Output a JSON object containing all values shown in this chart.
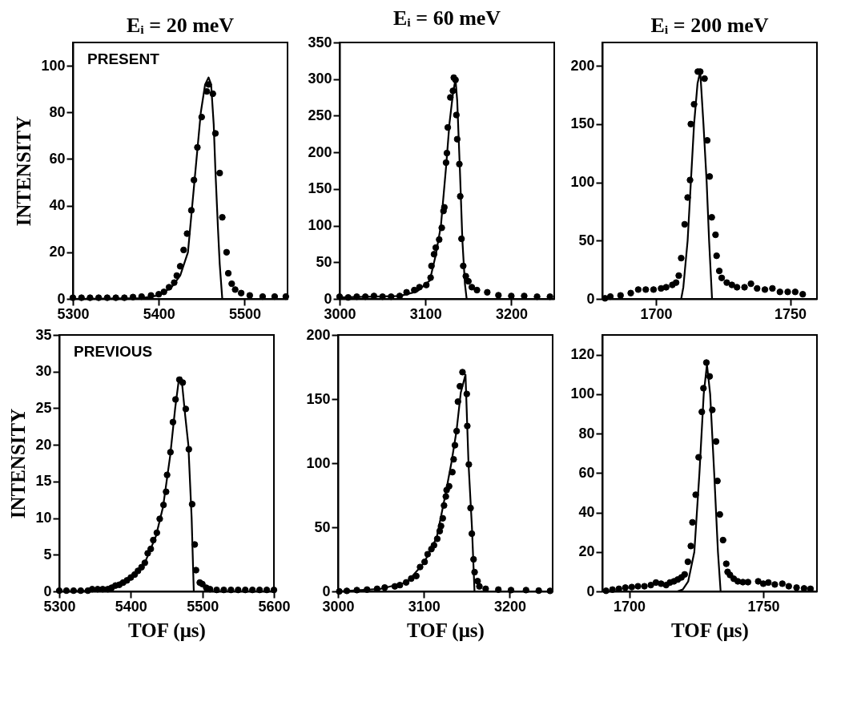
{
  "chart_data": [
    {
      "type": "scatter",
      "title": "Eᵢ = 20 meV",
      "ylabel": "INTENSITY",
      "annotations": [
        "PRESENT"
      ],
      "xlim": [
        5300,
        5550
      ],
      "ylim": [
        0,
        110
      ],
      "xticks": [
        5300,
        5400,
        5500
      ],
      "yticks": [
        0,
        20,
        40,
        60,
        80,
        100
      ],
      "series": [
        {
          "type": "scatter",
          "marker": "circle",
          "color": "#000000",
          "x": [
            5300,
            5310,
            5320,
            5330,
            5340,
            5350,
            5360,
            5370,
            5380,
            5391,
            5400,
            5406,
            5412,
            5418,
            5421,
            5425,
            5429,
            5433,
            5438,
            5441,
            5445,
            5450,
            5456,
            5458,
            5463,
            5466,
            5471,
            5474,
            5479,
            5481,
            5485,
            5489,
            5496,
            5506,
            5521,
            5535,
            5548
          ],
          "values": [
            0.5,
            0.5,
            0.5,
            0.5,
            0.5,
            0.5,
            0.5,
            0.8,
            1,
            1.5,
            2,
            3,
            5,
            7,
            10,
            14,
            21,
            28,
            38,
            51,
            65,
            78,
            89,
            92,
            88,
            71,
            54,
            35,
            20,
            11,
            6.5,
            4,
            2.5,
            1.5,
            1,
            1,
            1
          ]
        },
        {
          "type": "line",
          "marker": "none",
          "color": "#000000",
          "x": [
            5300,
            5380,
            5400,
            5415,
            5425,
            5434,
            5439,
            5444,
            5449,
            5454,
            5458,
            5461,
            5464,
            5466,
            5469,
            5471,
            5474
          ],
          "values": [
            0,
            0.3,
            1.5,
            5,
            10,
            20,
            40,
            60,
            80,
            92,
            95,
            92,
            75,
            55,
            30,
            15,
            0
          ]
        }
      ]
    },
    {
      "type": "scatter",
      "title": "Eᵢ = 60 meV",
      "xlim": [
        3000,
        3250
      ],
      "ylim": [
        0,
        350
      ],
      "xticks": [
        3000,
        3100,
        3200
      ],
      "yticks": [
        0,
        50,
        100,
        150,
        200,
        250,
        300,
        350
      ],
      "series": [
        {
          "type": "scatter",
          "marker": "circle",
          "color": "#000000",
          "x": [
            3000,
            3010,
            3020,
            3030,
            3040,
            3050,
            3060,
            3070,
            3078,
            3087,
            3093,
            3101,
            3106,
            3107,
            3110,
            3112,
            3116,
            3119,
            3121,
            3122,
            3124,
            3125,
            3126,
            3129,
            3132,
            3133,
            3135,
            3136,
            3137,
            3139.5,
            3140.5,
            3142,
            3144,
            3147,
            3150,
            3154,
            3160,
            3172,
            3185,
            3200,
            3215,
            3230,
            3245
          ],
          "values": [
            3,
            2,
            3,
            3,
            4,
            3,
            3,
            4,
            9,
            12,
            16,
            19,
            29,
            45,
            61,
            70,
            81,
            97,
            120,
            125,
            186,
            199,
            234,
            275,
            284,
            302,
            299,
            251,
            218,
            184,
            140,
            82,
            45,
            31,
            24,
            16,
            12,
            9,
            5,
            4,
            4,
            3,
            3
          ]
        },
        {
          "type": "line",
          "marker": "none",
          "color": "#000000",
          "x": [
            3000,
            3070,
            3090,
            3105,
            3112,
            3118,
            3124,
            3128,
            3132,
            3135,
            3137,
            3140,
            3143,
            3146,
            3148
          ],
          "values": [
            2,
            4,
            10,
            25,
            60,
            100,
            180,
            240,
            280,
            300,
            270,
            180,
            80,
            20,
            0
          ]
        }
      ]
    },
    {
      "type": "scatter",
      "title": "Eᵢ = 200 meV",
      "xlim": [
        1680,
        1760
      ],
      "ylim": [
        0,
        220
      ],
      "xticks": [
        1700,
        1750
      ],
      "yticks": [
        0,
        50,
        100,
        150,
        200
      ],
      "series": [
        {
          "type": "scatter",
          "marker": "circle",
          "color": "#000000",
          "x": [
            1681,
            1683,
            1686.8,
            1690.6,
            1693.4,
            1696.2,
            1699.1,
            1701.9,
            1703.8,
            1706.1,
            1707.5,
            1708.5,
            1709.4,
            1710.7,
            1711.8,
            1712.7,
            1713,
            1714.2,
            1715.6,
            1716.5,
            1718.1,
            1719.1,
            1720,
            1720.8,
            1722.2,
            1722.6,
            1723.6,
            1724.5,
            1726.4,
            1728.3,
            1730.2,
            1733,
            1735.4,
            1737.7,
            1740.6,
            1743.4,
            1746.2,
            1749.1,
            1751.9,
            1754.7
          ],
          "values": [
            0.5,
            2,
            3,
            5,
            8,
            8,
            8,
            9,
            10,
            12,
            14,
            20,
            35,
            64,
            87,
            102,
            150,
            167,
            195,
            195,
            189,
            136,
            105,
            70,
            55,
            37,
            24,
            18,
            14,
            12,
            10,
            10,
            13,
            9,
            8,
            9,
            6,
            6,
            6,
            4
          ]
        },
        {
          "type": "line",
          "marker": "none",
          "color": "#000000",
          "x": [
            1680,
            1709.4,
            1710.2,
            1711.8,
            1713,
            1714.2,
            1715.5,
            1716.5,
            1717.7,
            1718.9,
            1719.8,
            1720.9
          ],
          "values": [
            0,
            0,
            10,
            50,
            100,
            150,
            185,
            195,
            150,
            100,
            50,
            0
          ]
        }
      ]
    },
    {
      "type": "scatter",
      "xlabel": "TOF (μs)",
      "ylabel": "INTENSITY",
      "annotations": [
        "PREVIOUS"
      ],
      "xlim": [
        5300,
        5600
      ],
      "ylim": [
        0,
        35
      ],
      "xticks": [
        5300,
        5400,
        5500,
        5600
      ],
      "yticks": [
        0,
        5,
        10,
        15,
        20,
        25,
        30,
        35
      ],
      "series": [
        {
          "type": "scatter",
          "marker": "circle",
          "color": "#000000",
          "x": [
            5300,
            5310,
            5320,
            5330,
            5340,
            5346,
            5353.6,
            5360.7,
            5367.9,
            5373.2,
            5378.6,
            5383.9,
            5389.3,
            5394.6,
            5400,
            5405.4,
            5410,
            5415,
            5419.6,
            5423.6,
            5427.9,
            5431.4,
            5436.4,
            5440.4,
            5445.7,
            5449.3,
            5450.7,
            5455.4,
            5458.9,
            5462.5,
            5467.9,
            5472.5,
            5476.8,
            5481.1,
            5485.7,
            5489.3,
            5491.1,
            5496.4,
            5500,
            5505.4,
            5510.7,
            5520,
            5530,
            5540,
            5550,
            5560,
            5570,
            5580,
            5590,
            5600
          ],
          "values": [
            0.1,
            0.1,
            0.1,
            0.1,
            0.1,
            0.3,
            0.3,
            0.3,
            0.3,
            0.5,
            0.8,
            0.9,
            1.2,
            1.5,
            1.9,
            2.3,
            2.8,
            3.3,
            3.9,
            5.2,
            5.8,
            7,
            8,
            9.9,
            11.8,
            13.6,
            15.9,
            19,
            23.1,
            26.2,
            28.9,
            28.5,
            24.9,
            19.4,
            11.9,
            6.4,
            2.9,
            1.2,
            1,
            0.5,
            0.3,
            0.2,
            0.2,
            0.2,
            0.2,
            0.2,
            0.2,
            0.2,
            0.2,
            0.2
          ]
        },
        {
          "type": "line",
          "marker": "none",
          "color": "#000000",
          "x": [
            5300,
            5340,
            5370,
            5400,
            5420,
            5435,
            5445,
            5455,
            5462,
            5467,
            5470,
            5472,
            5476,
            5480.4,
            5485,
            5488,
            5600
          ],
          "values": [
            0,
            0.1,
            0.6,
            1.9,
            4,
            7.5,
            11.5,
            18.5,
            25,
            28.8,
            29.2,
            28,
            24,
            20,
            10,
            0,
            0
          ]
        }
      ]
    },
    {
      "type": "scatter",
      "xlabel": "TOF (μs)",
      "xlim": [
        3000,
        3250
      ],
      "ylim": [
        0,
        200
      ],
      "xticks": [
        3000,
        3100,
        3200
      ],
      "yticks": [
        0,
        50,
        100,
        150,
        200
      ],
      "series": [
        {
          "type": "scatter",
          "marker": "circle",
          "color": "#000000",
          "x": [
            3001.5,
            3010.3,
            3022,
            3033.8,
            3045.6,
            3054.4,
            3066.2,
            3072.1,
            3079.4,
            3085.3,
            3091.2,
            3095.6,
            3100.9,
            3104.4,
            3108.8,
            3111.8,
            3115.6,
            3118.5,
            3120,
            3122,
            3123.5,
            3125.6,
            3126.5,
            3129.4,
            3133.2,
            3134.7,
            3136.2,
            3138.2,
            3139.7,
            3142,
            3145,
            3150,
            3150.6,
            3152.4,
            3154.4,
            3155.9,
            3157.9,
            3159.1,
            3162.6,
            3164.7,
            3172,
            3186.8,
            3201.5,
            3219,
            3233.8,
            3247
          ],
          "values": [
            0,
            0.4,
            1,
            1.4,
            2,
            3,
            3.9,
            4.9,
            7,
            10,
            12,
            19,
            23,
            29,
            33,
            36,
            41,
            47,
            51,
            57,
            67,
            74,
            79,
            82,
            93,
            103,
            114,
            125,
            148,
            160,
            171,
            154,
            129,
            99,
            65,
            45,
            25,
            15,
            8,
            3.9,
            2,
            1.4,
            1,
            1,
            0.6,
            0.4
          ]
        },
        {
          "type": "line",
          "marker": "none",
          "color": "#000000",
          "x": [
            3000,
            3050,
            3080,
            3100,
            3115,
            3125,
            3132,
            3138,
            3143,
            3148.5,
            3152,
            3156,
            3159,
            3250
          ],
          "values": [
            0,
            2,
            7,
            22,
            42,
            75,
            100,
            125,
            155,
            169,
            100,
            50,
            0,
            0
          ]
        }
      ]
    },
    {
      "type": "scatter",
      "xlabel": "TOF (μs)",
      "xlim": [
        1690,
        1770
      ],
      "ylim": [
        0,
        130
      ],
      "xticks": [
        1700,
        1750
      ],
      "yticks": [
        0,
        20,
        40,
        60,
        80,
        100,
        120
      ],
      "series": [
        {
          "type": "scatter",
          "marker": "circle",
          "color": "#000000",
          "x": [
            1691.4,
            1693.8,
            1696.2,
            1698.6,
            1701,
            1703.3,
            1705.7,
            1708.1,
            1710,
            1711.9,
            1713.8,
            1715.2,
            1716.7,
            1718.1,
            1719.5,
            1720.7,
            1721.9,
            1723,
            1723.6,
            1724.8,
            1725.9,
            1727.1,
            1727.7,
            1728.8,
            1730,
            1731,
            1732.4,
            1732.9,
            1733.8,
            1735,
            1736.2,
            1736.7,
            1737.6,
            1739,
            1740.5,
            1742.4,
            1744.3,
            1748.1,
            1750,
            1751.9,
            1754.3,
            1757.1,
            1759.5,
            1762.4,
            1765.2,
            1767.6
          ],
          "values": [
            0.3,
            0.9,
            1.3,
            1.9,
            2.2,
            2.6,
            2.6,
            3.2,
            4.5,
            3.9,
            3.2,
            4.5,
            5.1,
            6,
            7.1,
            8.6,
            15,
            23,
            35,
            49,
            68,
            91,
            103,
            116,
            109,
            92,
            76,
            56,
            39,
            26,
            14,
            9.9,
            8.3,
            6.4,
            5.1,
            4.7,
            4.7,
            5.1,
            3.9,
            4.5,
            3.5,
            3.9,
            2.6,
            1.9,
            1.5,
            1.3
          ]
        },
        {
          "type": "line",
          "marker": "none",
          "color": "#000000",
          "x": [
            1690,
            1718,
            1720,
            1722,
            1724.3,
            1726.2,
            1727.8,
            1729,
            1730.2,
            1731.7,
            1733.1,
            1734.1
          ],
          "values": [
            0,
            0,
            1,
            5,
            20,
            60,
            100,
            115,
            100,
            60,
            20,
            0
          ]
        }
      ]
    }
  ]
}
